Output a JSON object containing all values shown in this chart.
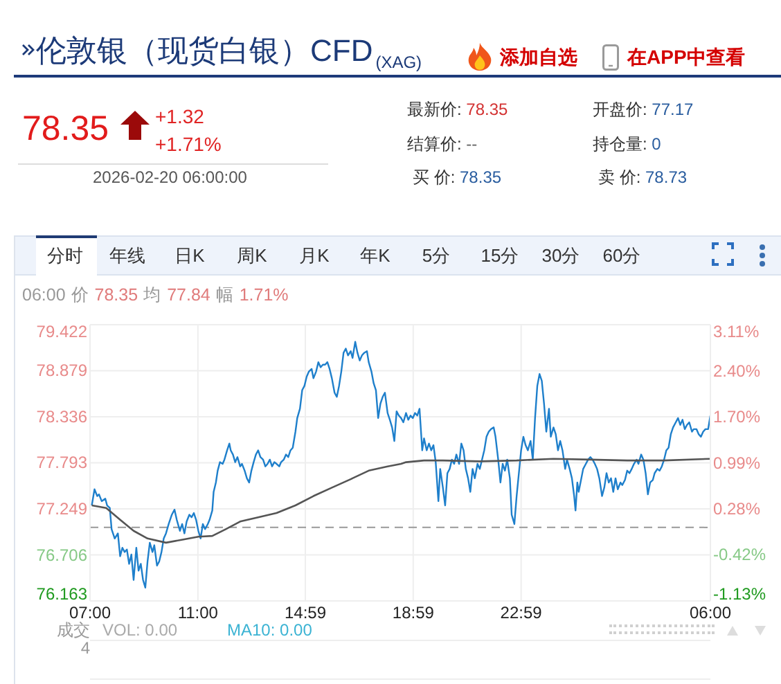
{
  "chart_data": {
    "type": "line",
    "title": "伦敦银（现货白银）CFD$_{(XAG)}$",
    "xlim": [
      "2026-02-19T07:00",
      "2026-02-20T06:00"
    ],
    "xticks": [
      {
        "value": "2026-02-19T07:00",
        "label": "07:00"
      },
      {
        "value": "2026-02-19T11:00",
        "label": "11:00"
      },
      {
        "value": "2026-02-19T14:59",
        "label": "14:59"
      },
      {
        "value": "2026-02-19T18:59",
        "label": "18:59"
      },
      {
        "value": "2026-02-19T22:59",
        "label": "22:59"
      },
      {
        "value": "2026-02-20T06:00",
        "label": "06:00"
      }
    ],
    "ylim": [
      76.163,
      79.422
    ],
    "yticks": [
      76.163,
      76.706,
      77.249,
      77.793,
      78.336,
      78.879,
      79.422
    ],
    "y2lim": [
      -1.13,
      3.11
    ],
    "y2ticks": [
      {
        "value": -1.13,
        "label": "-1.13%"
      },
      {
        "value": -0.42,
        "label": "-0.42%"
      },
      {
        "value": 0.28,
        "label": "0.28%"
      },
      {
        "value": 0.99,
        "label": "0.99%"
      },
      {
        "value": 1.7,
        "label": "1.70%"
      },
      {
        "value": 2.4,
        "label": "2.40%"
      },
      {
        "value": 3.11,
        "label": "3.11%"
      }
    ],
    "grid": true,
    "ref_lines": [
      {
        "axis": "y",
        "value": 77.03,
        "line_style": "dashed",
        "color": "#999999"
      }
    ],
    "series": [
      {
        "color": "#1e7fcb",
        "x": [
          "2026-02-19T07:04",
          "2026-02-19T07:10",
          "2026-02-19T07:16",
          "2026-02-19T07:20",
          "2026-02-19T07:26",
          "2026-02-19T07:34",
          "2026-02-19T07:38",
          "2026-02-19T07:44",
          "2026-02-19T07:48",
          "2026-02-19T07:55",
          "2026-02-19T08:02",
          "2026-02-19T08:07",
          "2026-02-19T08:12",
          "2026-02-19T08:17",
          "2026-02-19T08:22",
          "2026-02-19T08:27",
          "2026-02-19T08:32",
          "2026-02-19T08:37",
          "2026-02-19T08:43",
          "2026-02-19T08:48",
          "2026-02-19T08:53",
          "2026-02-19T08:58",
          "2026-02-19T09:03",
          "2026-02-19T09:08",
          "2026-02-19T09:13",
          "2026-02-19T09:19",
          "2026-02-19T09:23",
          "2026-02-19T09:29",
          "2026-02-19T09:34",
          "2026-02-19T09:39",
          "2026-02-19T09:44",
          "2026-02-19T09:49",
          "2026-02-19T09:55",
          "2026-02-19T10:02",
          "2026-02-19T10:08",
          "2026-02-19T10:13",
          "2026-02-19T10:20",
          "2026-02-19T10:25",
          "2026-02-19T10:30",
          "2026-02-19T10:35",
          "2026-02-19T10:41",
          "2026-02-19T10:46",
          "2026-02-19T10:51",
          "2026-02-19T10:56",
          "2026-02-19T11:01",
          "2026-02-19T11:06",
          "2026-02-19T11:11",
          "2026-02-19T11:16",
          "2026-02-19T11:22",
          "2026-02-19T11:26",
          "2026-02-19T11:32",
          "2026-02-19T11:35",
          "2026-02-19T11:40",
          "2026-02-19T11:44",
          "2026-02-19T11:49",
          "2026-02-19T11:55",
          "2026-02-19T11:59",
          "2026-02-19T12:05",
          "2026-02-19T12:10",
          "2026-02-19T12:13",
          "2026-02-19T12:18",
          "2026-02-19T12:23",
          "2026-02-19T12:28",
          "2026-02-19T12:34",
          "2026-02-19T12:38",
          "2026-02-19T12:44",
          "2026-02-19T12:49",
          "2026-02-19T12:54",
          "2026-02-19T12:59",
          "2026-02-19T13:04",
          "2026-02-19T13:09",
          "2026-02-19T13:14",
          "2026-02-19T13:19",
          "2026-02-19T13:25",
          "2026-02-19T13:30",
          "2026-02-19T13:35",
          "2026-02-19T13:40",
          "2026-02-19T13:45",
          "2026-02-19T13:50",
          "2026-02-19T13:55",
          "2026-02-19T14:01",
          "2026-02-19T14:05",
          "2026-02-19T14:11",
          "2026-02-19T14:16",
          "2026-02-19T14:21",
          "2026-02-19T14:26",
          "2026-02-19T14:31",
          "2026-02-19T14:37",
          "2026-02-19T14:41",
          "2026-02-19T14:47",
          "2026-02-19T14:52",
          "2026-02-19T14:57",
          "2026-02-19T15:02",
          "2026-02-19T15:07",
          "2026-02-19T15:13",
          "2026-02-19T15:17",
          "2026-02-19T15:23",
          "2026-02-19T15:28",
          "2026-02-19T15:33",
          "2026-02-19T15:38",
          "2026-02-19T15:43",
          "2026-02-19T15:48",
          "2026-02-19T15:53",
          "2026-02-19T15:58",
          "2026-02-19T16:04",
          "2026-02-19T16:09",
          "2026-02-19T16:14",
          "2026-02-19T16:19",
          "2026-02-19T16:24",
          "2026-02-19T16:29",
          "2026-02-19T16:34",
          "2026-02-19T16:40",
          "2026-02-19T16:44",
          "2026-02-19T16:50",
          "2026-02-19T16:55",
          "2026-02-19T17:00",
          "2026-02-19T17:05",
          "2026-02-19T17:10",
          "2026-02-19T17:16",
          "2026-02-19T17:20",
          "2026-02-19T17:26",
          "2026-02-19T17:31",
          "2026-02-19T17:36",
          "2026-02-19T17:41",
          "2026-02-19T17:46",
          "2026-02-19T17:51",
          "2026-02-19T17:56",
          "2026-02-19T18:02",
          "2026-02-19T18:07",
          "2026-02-19T18:12",
          "2026-02-19T18:17",
          "2026-02-19T18:22",
          "2026-02-19T18:27",
          "2026-02-19T18:32",
          "2026-02-19T18:37",
          "2026-02-19T18:43",
          "2026-02-19T18:48",
          "2026-02-19T18:53",
          "2026-02-19T18:58",
          "2026-02-19T19:03",
          "2026-02-19T19:08",
          "2026-02-19T19:13",
          "2026-02-19T19:19",
          "2026-02-19T19:23",
          "2026-02-19T19:29",
          "2026-02-19T19:34",
          "2026-02-19T19:39",
          "2026-02-19T19:44",
          "2026-02-19T19:49",
          "2026-02-19T19:55",
          "2026-02-19T19:59",
          "2026-02-19T20:05",
          "2026-02-19T20:10",
          "2026-02-19T20:15",
          "2026-02-19T20:20",
          "2026-02-19T20:25",
          "2026-02-19T20:30",
          "2026-02-19T20:35",
          "2026-02-19T20:41",
          "2026-02-19T20:46",
          "2026-02-19T20:51",
          "2026-02-19T20:56",
          "2026-02-19T21:01",
          "2026-02-19T21:06",
          "2026-02-19T21:11",
          "2026-02-19T21:16",
          "2026-02-19T21:22",
          "2026-02-19T21:27",
          "2026-02-19T21:32",
          "2026-02-19T21:37",
          "2026-02-19T21:42",
          "2026-02-19T21:47",
          "2026-02-19T21:52",
          "2026-02-19T21:58",
          "2026-02-19T22:02",
          "2026-02-19T22:08",
          "2026-02-19T22:13",
          "2026-02-19T22:18",
          "2026-02-19T22:23",
          "2026-02-19T22:28",
          "2026-02-19T22:34",
          "2026-02-19T22:38",
          "2026-02-19T22:44",
          "2026-02-19T22:49",
          "2026-02-19T22:54",
          "2026-02-19T22:59",
          "2026-02-19T23:04",
          "2026-02-19T23:09",
          "2026-02-19T23:14",
          "2026-02-19T23:20",
          "2026-02-19T23:25",
          "2026-02-19T23:30",
          "2026-02-19T23:35",
          "2026-02-19T23:40",
          "2026-02-19T23:45",
          "2026-02-19T23:50",
          "2026-02-19T23:55",
          "2026-02-20T00:01",
          "2026-02-20T00:05",
          "2026-02-20T00:11",
          "2026-02-20T00:16",
          "2026-02-20T00:21",
          "2026-02-20T00:26",
          "2026-02-20T00:31",
          "2026-02-20T00:37",
          "2026-02-20T00:41",
          "2026-02-20T00:47",
          "2026-02-20T00:52",
          "2026-02-20T00:57",
          "2026-02-20T01:00",
          "2026-02-20T01:04",
          "2026-02-20T01:07",
          "2026-02-20T01:13",
          "2026-02-20T01:17",
          "2026-02-20T01:23",
          "2026-02-20T01:28",
          "2026-02-20T01:33",
          "2026-02-20T01:38",
          "2026-02-20T01:43",
          "2026-02-20T01:48",
          "2026-02-20T01:53",
          "2026-02-20T01:59",
          "2026-02-20T02:04",
          "2026-02-20T02:09",
          "2026-02-20T02:14",
          "2026-02-20T02:19",
          "2026-02-20T02:24",
          "2026-02-20T02:29",
          "2026-02-20T02:34",
          "2026-02-20T02:40",
          "2026-02-20T02:44",
          "2026-02-20T02:50",
          "2026-02-20T02:55",
          "2026-02-20T03:00",
          "2026-02-20T03:05",
          "2026-02-20T03:10",
          "2026-02-20T03:16",
          "2026-02-20T03:20",
          "2026-02-20T03:26",
          "2026-02-20T03:31",
          "2026-02-20T03:36",
          "2026-02-20T03:41",
          "2026-02-20T03:46",
          "2026-02-20T03:52",
          "2026-02-20T03:56",
          "2026-02-20T04:02",
          "2026-02-20T04:07",
          "2026-02-20T04:12",
          "2026-02-20T04:17",
          "2026-02-20T04:22",
          "2026-02-20T04:27",
          "2026-02-20T04:32",
          "2026-02-20T04:37",
          "2026-02-20T04:43",
          "2026-02-20T04:48",
          "2026-02-20T04:53",
          "2026-02-20T04:58",
          "2026-02-20T05:03",
          "2026-02-20T05:08",
          "2026-02-20T05:13",
          "2026-02-20T05:19",
          "2026-02-20T05:23",
          "2026-02-20T05:29",
          "2026-02-20T05:34",
          "2026-02-20T05:39",
          "2026-02-20T05:44",
          "2026-02-20T05:49",
          "2026-02-20T05:55",
          "2026-02-20T06:00"
        ],
        "values": [
          77.29,
          77.48,
          77.4,
          77.42,
          77.34,
          77.37,
          77.29,
          77.26,
          77.01,
          76.9,
          76.96,
          76.69,
          76.79,
          76.74,
          76.77,
          76.6,
          76.71,
          76.41,
          76.79,
          76.52,
          76.6,
          76.41,
          76.32,
          76.63,
          76.85,
          76.74,
          76.82,
          76.58,
          76.63,
          76.74,
          76.9,
          76.96,
          77.07,
          77.18,
          77.24,
          77.12,
          76.99,
          77.07,
          76.96,
          77.1,
          77.18,
          77.15,
          77.2,
          77.12,
          76.99,
          76.9,
          77.07,
          77.01,
          77.07,
          77.12,
          77.23,
          77.45,
          77.56,
          77.7,
          77.8,
          77.78,
          77.83,
          77.94,
          78.02,
          77.94,
          77.89,
          77.8,
          77.86,
          77.75,
          77.78,
          77.7,
          77.61,
          77.56,
          77.7,
          77.8,
          77.89,
          77.94,
          77.86,
          77.83,
          77.75,
          77.78,
          77.83,
          77.75,
          77.8,
          77.78,
          77.75,
          77.8,
          77.83,
          77.89,
          77.86,
          77.94,
          77.97,
          78.16,
          78.32,
          78.43,
          78.65,
          78.7,
          78.81,
          78.87,
          78.9,
          78.79,
          78.87,
          78.98,
          78.92,
          78.95,
          78.95,
          78.98,
          78.9,
          78.79,
          78.62,
          78.57,
          78.7,
          78.87,
          79.09,
          79.14,
          79.06,
          79.11,
          79.03,
          79.22,
          79.09,
          79.0,
          79.06,
          79.09,
          79.11,
          78.98,
          78.87,
          78.73,
          78.65,
          78.32,
          78.49,
          78.57,
          78.62,
          78.38,
          78.3,
          78.21,
          78.05,
          78.4,
          78.35,
          78.32,
          78.27,
          78.38,
          78.3,
          78.35,
          78.32,
          78.38,
          78.35,
          78.43,
          77.94,
          78.08,
          77.94,
          78.02,
          77.94,
          78.0,
          77.8,
          77.34,
          77.72,
          77.5,
          77.29,
          77.67,
          77.72,
          77.83,
          77.78,
          77.89,
          77.78,
          78.02,
          77.94,
          77.72,
          77.61,
          77.45,
          77.72,
          77.61,
          77.78,
          77.72,
          77.83,
          77.94,
          78.1,
          78.16,
          78.19,
          78.21,
          78.1,
          77.83,
          77.56,
          77.78,
          77.7,
          77.83,
          77.61,
          77.18,
          77.07,
          77.4,
          77.67,
          77.94,
          78.1,
          78.0,
          77.94,
          78.05,
          77.83,
          78.32,
          78.7,
          78.84,
          78.76,
          78.49,
          78.16,
          78.43,
          78.1,
          78.21,
          78.13,
          77.94,
          78.05,
          77.94,
          77.72,
          77.83,
          77.72,
          77.61,
          77.4,
          77.23,
          77.56,
          77.45,
          77.61,
          77.72,
          77.78,
          77.83,
          77.86,
          77.83,
          77.78,
          77.72,
          77.61,
          77.4,
          77.5,
          77.67,
          77.56,
          77.61,
          77.45,
          77.61,
          77.48,
          77.56,
          77.53,
          77.59,
          77.7,
          77.67,
          77.72,
          77.78,
          77.83,
          77.78,
          77.89,
          77.83,
          77.67,
          77.42,
          77.56,
          77.59,
          77.67,
          77.72,
          77.7,
          77.75,
          77.83,
          77.94,
          77.97,
          78.13,
          78.21,
          78.27,
          78.32,
          78.24,
          78.3,
          78.19,
          78.24,
          78.27,
          78.16,
          78.19,
          78.19,
          78.13,
          78.1,
          78.16,
          78.19,
          78.19,
          78.35
        ]
      },
      {
        "color": "#555555",
        "x": [
          "2026-02-19T07:04",
          "2026-02-19T07:36",
          "2026-02-19T08:07",
          "2026-02-19T08:37",
          "2026-02-19T09:08",
          "2026-02-19T09:49",
          "2026-02-19T10:30",
          "2026-02-19T11:01",
          "2026-02-19T11:32",
          "2026-02-19T12:02",
          "2026-02-19T12:34",
          "2026-02-19T13:14",
          "2026-02-19T13:55",
          "2026-02-19T14:37",
          "2026-02-19T15:17",
          "2026-02-19T15:58",
          "2026-02-19T16:40",
          "2026-02-19T17:20",
          "2026-02-19T18:02",
          "2026-02-19T18:32",
          "2026-02-19T18:43",
          "2026-02-19T19:23",
          "2026-02-19T20:05",
          "2026-02-19T21:27",
          "2026-02-19T22:49",
          "2026-02-20T00:11",
          "2026-02-20T01:33",
          "2026-02-20T02:55",
          "2026-02-20T04:17",
          "2026-02-20T06:00"
        ],
        "values": [
          77.29,
          77.26,
          77.12,
          76.99,
          76.9,
          76.85,
          76.89,
          76.92,
          76.93,
          77.01,
          77.1,
          77.15,
          77.2,
          77.29,
          77.4,
          77.5,
          77.6,
          77.7,
          77.75,
          77.78,
          77.8,
          77.82,
          77.82,
          77.81,
          77.82,
          77.84,
          77.83,
          77.82,
          77.82,
          77.84
        ]
      }
    ],
    "annotations": [
      "添加自选",
      "在APP中查看",
      "78.35",
      "+1.32",
      "+1.71%",
      "2026-02-20 06:00:00",
      "最新价: 78.35",
      "开盘价: 77.17",
      "结算价: --",
      "持仓量: 0",
      "买 价: 78.35",
      "卖 价: 78.73",
      "分时",
      "年线",
      "日K",
      "周K",
      "月K",
      "年K",
      "5分",
      "15分",
      "30分",
      "60分",
      "06:00",
      "价",
      "78.35",
      "均",
      "77.84",
      "幅",
      "1.71%",
      "成交",
      "4",
      "VOL: 0.00",
      "MA10: 0.00"
    ]
  }
}
